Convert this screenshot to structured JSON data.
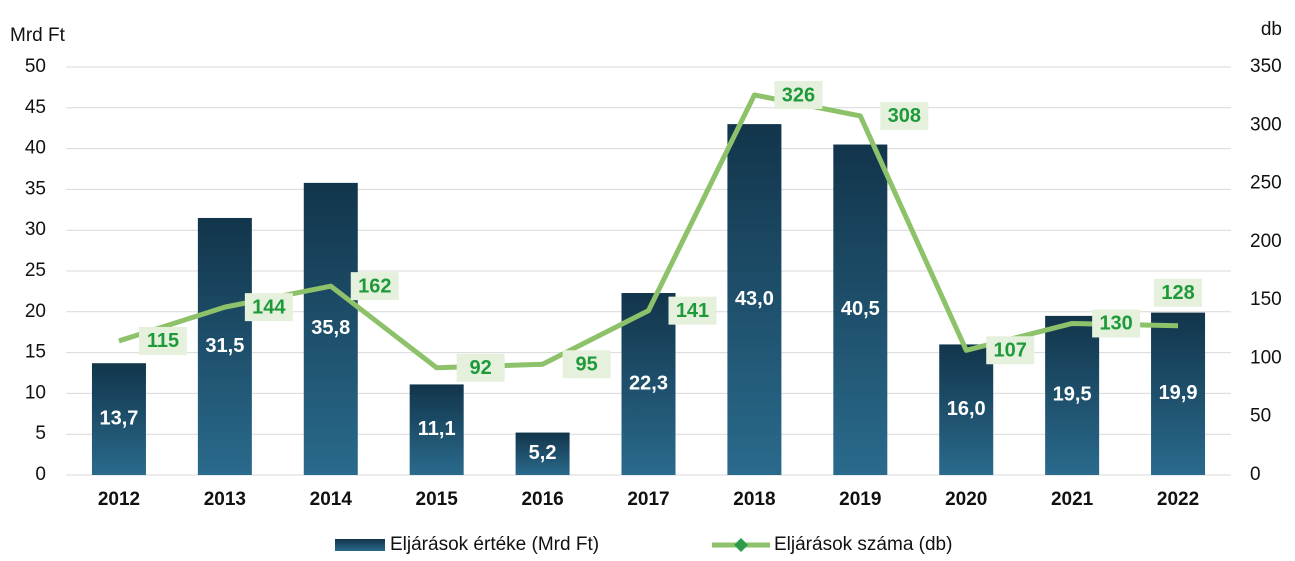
{
  "chart_data": {
    "type": "bar",
    "y_label": "Mrd Ft",
    "y2_label": "db",
    "categories": [
      "2012",
      "2013",
      "2014",
      "2015",
      "2016",
      "2017",
      "2018",
      "2019",
      "2020",
      "2021",
      "2022"
    ],
    "series": [
      {
        "name": "Eljárások értéke (Mrd Ft)",
        "type": "bar",
        "color": "#1f5572",
        "values": [
          13.7,
          31.5,
          35.8,
          11.1,
          5.2,
          22.3,
          43.0,
          40.5,
          16.0,
          19.5,
          19.9
        ],
        "value_labels": [
          "13,7",
          "31,5",
          "35,8",
          "11,1",
          "5,2",
          "22,3",
          "43,0",
          "40,5",
          "16,0",
          "19,5",
          "19,9"
        ]
      },
      {
        "name": "Eljárások száma (db)",
        "type": "line",
        "axis": "y2",
        "color": "#8dc26a",
        "values": [
          115,
          144,
          162,
          92,
          95,
          141,
          326,
          308,
          107,
          130,
          128
        ]
      }
    ],
    "ylim": [
      0,
      50
    ],
    "yticks": [
      0,
      5,
      10,
      15,
      20,
      25,
      30,
      35,
      40,
      45,
      50
    ],
    "y2lim": [
      0,
      350
    ],
    "y2ticks": [
      0,
      50,
      100,
      150,
      200,
      250,
      300,
      350
    ],
    "grid": true
  }
}
